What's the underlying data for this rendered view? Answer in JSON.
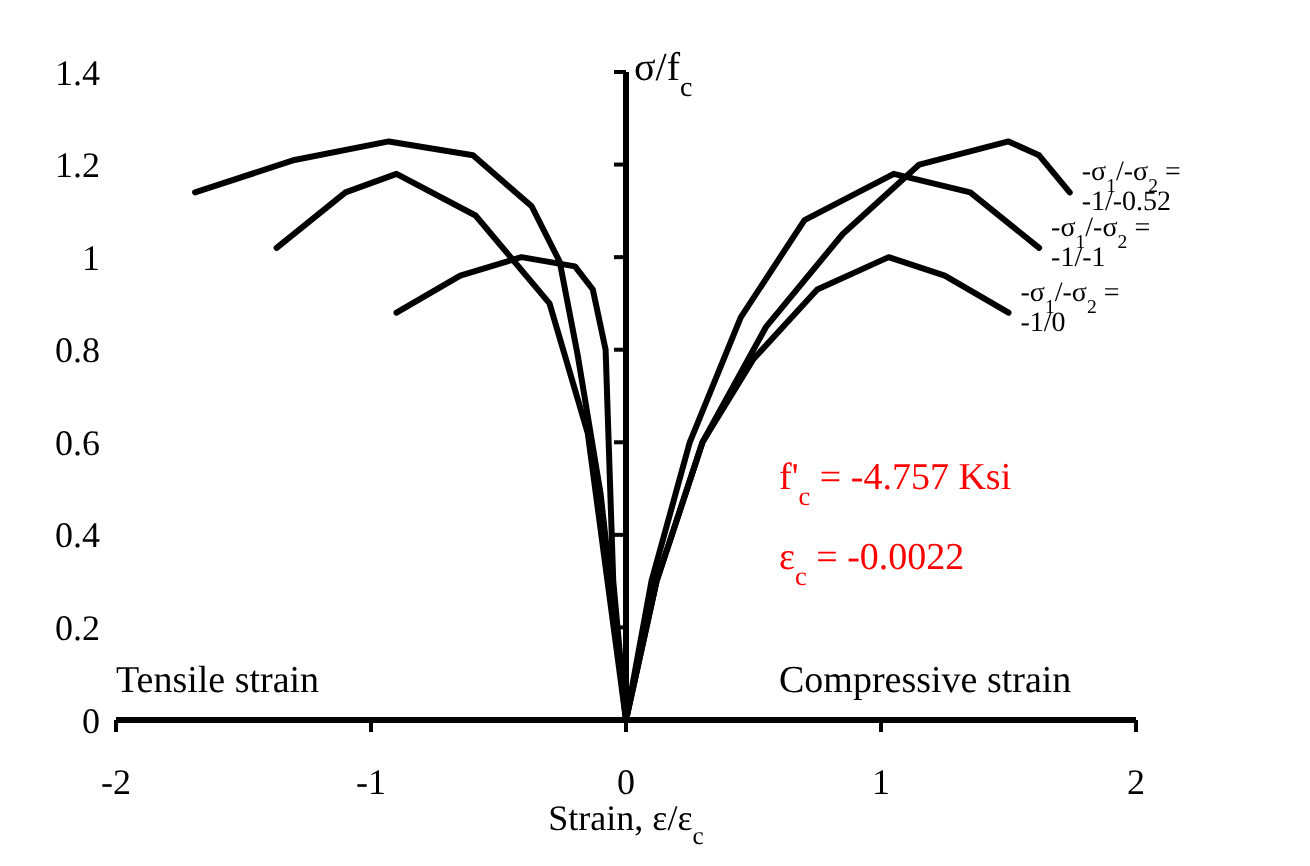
{
  "chart_data": {
    "type": "line",
    "xlabel": "Strain,  ε/ε$_{c}$",
    "ylabel": "σ/f$_{c}$",
    "xlim": [
      -2,
      2
    ],
    "xticks": [
      -2,
      -1,
      0,
      1,
      2
    ],
    "ylim": [
      0,
      1.4
    ],
    "yticks": [
      0,
      0.2,
      0.4,
      0.6,
      0.8,
      1,
      1.2,
      1.4
    ],
    "marker": "none",
    "line_style": "solid",
    "series": [
      {
        "name": "-σ$_{1}$/-σ$_{2}$ = -1/-0.52",
        "color": "#000000",
        "x": [
          -1.69,
          -1.3,
          -0.93,
          -0.6,
          -0.37,
          -0.26,
          -0.19,
          -0.1,
          0,
          0.12,
          0.3,
          0.55,
          0.85,
          1.15,
          1.5,
          1.62,
          1.74
        ],
        "values": [
          1.14,
          1.21,
          1.25,
          1.22,
          1.11,
          0.99,
          0.79,
          0.49,
          0,
          0.3,
          0.6,
          0.85,
          1.05,
          1.2,
          1.25,
          1.22,
          1.14
        ]
      },
      {
        "name": "-σ$_{1}$/-σ$_{2}$ = -1/-1",
        "color": "#000000",
        "x": [
          -1.37,
          -1.1,
          -0.9,
          -0.59,
          -0.3,
          -0.15,
          0,
          0.1,
          0.25,
          0.45,
          0.7,
          1.05,
          1.35,
          1.62
        ],
        "values": [
          1.02,
          1.14,
          1.18,
          1.09,
          0.9,
          0.62,
          0,
          0.3,
          0.6,
          0.87,
          1.08,
          1.18,
          1.14,
          1.02
        ]
      },
      {
        "name": "-σ$_{1}$/-σ$_{2}$ = -1/0",
        "color": "#000000",
        "x": [
          -0.9,
          -0.65,
          -0.41,
          -0.2,
          -0.13,
          -0.08,
          -0.05,
          0,
          0.12,
          0.3,
          0.5,
          0.75,
          1.03,
          1.25,
          1.5
        ],
        "values": [
          0.88,
          0.96,
          1.0,
          0.98,
          0.93,
          0.8,
          0.3,
          0,
          0.3,
          0.6,
          0.78,
          0.93,
          1.0,
          0.96,
          0.88
        ]
      }
    ],
    "annotations": [
      "f'$_{c}$ = -4.757 Ksi",
      "ε$_{c}$ = -0.0022",
      "Tensile strain",
      "Compressive strain"
    ]
  }
}
